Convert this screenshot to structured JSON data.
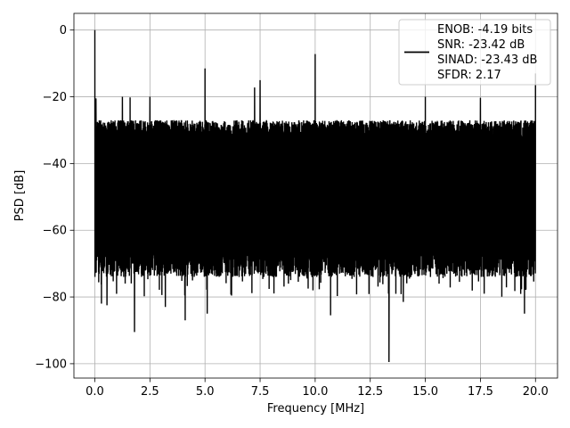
{
  "chart_data": {
    "type": "line",
    "xlabel": "Frequency [MHz]",
    "ylabel": "PSD [dB]",
    "xlim": [
      -0.95,
      21.0
    ],
    "ylim": [
      -104.3,
      5.0
    ],
    "xticks": [
      0.0,
      2.5,
      5.0,
      7.5,
      10.0,
      12.5,
      15.0,
      17.5,
      20.0
    ],
    "xtick_labels": [
      "0.0",
      "2.5",
      "5.0",
      "7.5",
      "10.0",
      "12.5",
      "15.0",
      "17.5",
      "20.0"
    ],
    "yticks": [
      0,
      -20,
      -40,
      -60,
      -80,
      -100
    ],
    "ytick_labels": [
      "0",
      "−20",
      "−40",
      "−60",
      "−80",
      "−100"
    ],
    "grid": true,
    "legend_position": "top-right",
    "legend_entries": [
      "ENOB: -4.19 bits",
      "SNR: -23.42 dB",
      "SINAD: -23.43 dB",
      "SFDR: 2.17"
    ],
    "series": [
      {
        "color": "#000000",
        "description": "dense noise-like PSD spanning 0 to 20 MHz",
        "noise_floor_upper": -25,
        "noise_floor_lower": -70,
        "spurs": [
          {
            "x": 0.0,
            "y": 0.0
          },
          {
            "x": 0.05,
            "y": -20.5
          },
          {
            "x": 1.25,
            "y": -20.0
          },
          {
            "x": 1.6,
            "y": -20.2
          },
          {
            "x": 2.5,
            "y": -20.0
          },
          {
            "x": 5.0,
            "y": -11.5
          },
          {
            "x": 7.25,
            "y": -17.2
          },
          {
            "x": 7.5,
            "y": -15.0
          },
          {
            "x": 10.0,
            "y": -7.2
          },
          {
            "x": 15.0,
            "y": -20.0
          },
          {
            "x": 17.5,
            "y": -20.3
          },
          {
            "x": 20.0,
            "y": -13.0
          }
        ],
        "dips": [
          {
            "x": 0.3,
            "y": -82.0
          },
          {
            "x": 0.55,
            "y": -82.5
          },
          {
            "x": 1.8,
            "y": -90.5
          },
          {
            "x": 3.2,
            "y": -83.0
          },
          {
            "x": 4.1,
            "y": -87.0
          },
          {
            "x": 5.1,
            "y": -85.0
          },
          {
            "x": 9.9,
            "y": -78.0
          },
          {
            "x": 10.7,
            "y": -85.5
          },
          {
            "x": 13.35,
            "y": -99.5
          },
          {
            "x": 14.0,
            "y": -81.5
          },
          {
            "x": 19.5,
            "y": -85.0
          }
        ]
      }
    ]
  }
}
